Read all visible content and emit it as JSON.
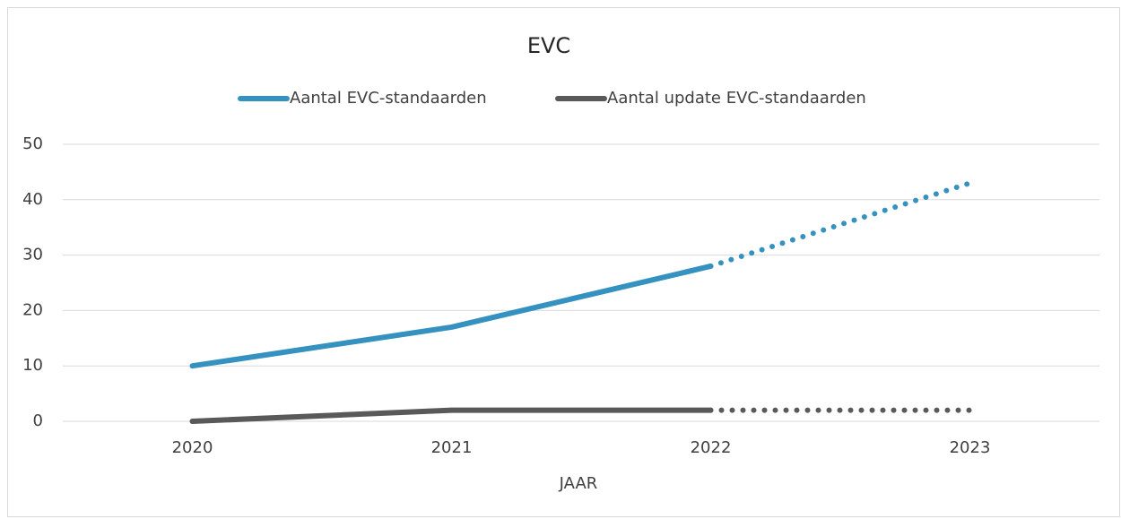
{
  "chart_data": {
    "type": "line",
    "title": "EVC",
    "x_label": "JAAR",
    "categories": [
      "2020",
      "2021",
      "2022",
      "2023"
    ],
    "series": [
      {
        "name": "Aantal EVC-standaarden",
        "color": "#3592c0",
        "values": [
          10,
          17,
          28,
          43
        ]
      },
      {
        "name": "Aantal update EVC-standaarden",
        "color": "#595959",
        "values": [
          0,
          2,
          2,
          2
        ]
      }
    ],
    "ylim": [
      0,
      50
    ],
    "yticks": [
      0,
      10,
      20,
      30,
      40,
      50
    ],
    "grid": true,
    "legend": "top",
    "dotted_last_segment": true
  }
}
